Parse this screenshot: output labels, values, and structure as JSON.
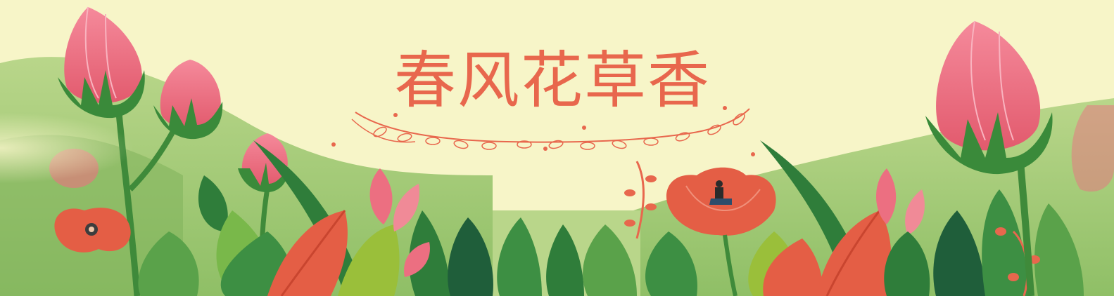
{
  "banner": {
    "title": "春风花草香"
  },
  "colors": {
    "background": "#f7f5c8",
    "title": "#e8674d",
    "flower_bud": "#ec6f81",
    "flower_red": "#e45e45",
    "leaf_dark": "#2f7d3a",
    "leaf_light": "#79b84a",
    "hill": "#a8c77a"
  }
}
